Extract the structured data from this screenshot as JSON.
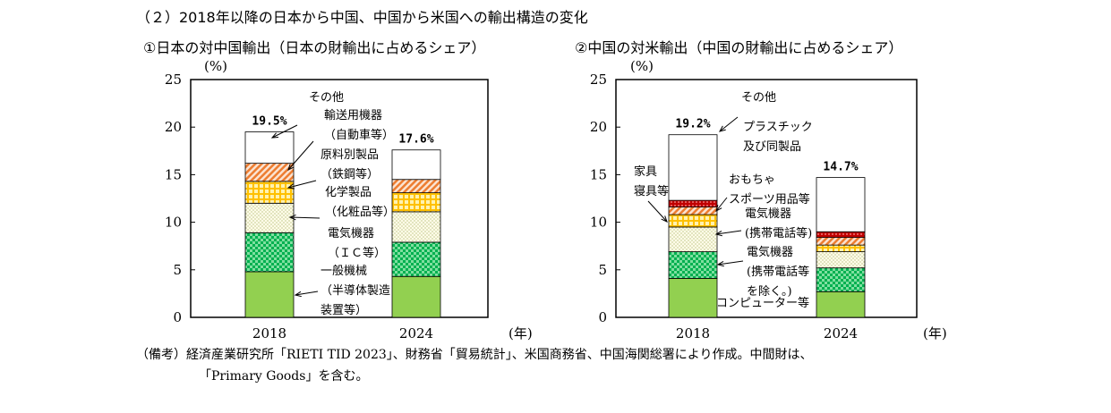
{
  "heading": "（２）2018年以降の日本から中国、中国から米国への輸出構造の変化",
  "note": {
    "line1": "（備考）経済産業研究所「RIETI TID 2023」、財務省「貿易統計」、米国商務省、中国海関総署により作成。中間財は、",
    "line2": "「Primary Goods」を含む。"
  },
  "colors": {
    "general_machinery": "#92d050",
    "electrical_excl": "#00b050",
    "chem_or_elec_phones": "#fffce8",
    "raw_material_or_furniture": "#ffc000",
    "transport_or_toys": "#f4b183",
    "plastics": "#c00000",
    "other": "#ffffff"
  },
  "chart_data": [
    {
      "type": "bar",
      "stacked": true,
      "title": "①日本の対中国輸出（日本の財輸出に占めるシェア）",
      "ylabel": "(%)",
      "xlabel": "(年)",
      "ylim": [
        0,
        25
      ],
      "yticks": [
        0,
        5,
        10,
        15,
        20,
        25
      ],
      "categories": [
        "2018",
        "2024"
      ],
      "totals_labels": [
        "19.5%",
        "17.6%"
      ],
      "totals": [
        19.5,
        17.6
      ],
      "series": [
        {
          "name": "一般機械（半導体製造装置等）",
          "values": [
            4.8,
            4.3
          ],
          "color_key": "general_machinery",
          "pattern": "solid"
        },
        {
          "name": "電気機器（ＩＣ等）",
          "values": [
            4.1,
            3.6
          ],
          "color_key": "electrical_excl",
          "pattern": "check"
        },
        {
          "name": "化学製品（化粧品等）",
          "values": [
            3.1,
            3.2
          ],
          "color_key": "chem_or_elec_phones",
          "pattern": "dots"
        },
        {
          "name": "原料別製品（鉄鋼等）",
          "values": [
            2.3,
            2.0
          ],
          "color_key": "raw_material_or_furniture",
          "pattern": "grid"
        },
        {
          "name": "輸送用機器（自動車等）",
          "values": [
            1.9,
            1.4
          ],
          "color_key": "transport_or_toys",
          "pattern": "diag"
        },
        {
          "name": "その他",
          "values": [
            3.3,
            3.1
          ],
          "color_key": "other",
          "pattern": "solid"
        }
      ],
      "annotations": [
        {
          "lines": [
            "その他"
          ],
          "series": 5
        },
        {
          "lines": [
            "輸送用機器",
            "（自動車等）"
          ],
          "series": 4
        },
        {
          "lines": [
            "原料別製品",
            "（鉄鋼等）"
          ],
          "series": 3
        },
        {
          "lines": [
            "化学製品",
            "（化粧品等）"
          ],
          "series": 2
        },
        {
          "lines": [
            "電気機器",
            "（ＩＣ等）"
          ],
          "series": 1
        },
        {
          "lines": [
            "一般機械",
            "（半導体製造",
            "装置等）"
          ],
          "series": 0
        }
      ]
    },
    {
      "type": "bar",
      "stacked": true,
      "title": "②中国の対米輸出（中国の財輸出に占めるシェア）",
      "ylabel": "(%)",
      "xlabel": "(年)",
      "ylim": [
        0,
        25
      ],
      "yticks": [
        0,
        5,
        10,
        15,
        20,
        25
      ],
      "categories": [
        "2018",
        "2024"
      ],
      "totals_labels": [
        "19.2%",
        "14.7%"
      ],
      "totals": [
        19.2,
        14.7
      ],
      "series": [
        {
          "name": "コンピューター等",
          "values": [
            4.1,
            2.7
          ],
          "color_key": "general_machinery",
          "pattern": "solid"
        },
        {
          "name": "電気機器（携帯電話等を除く。）",
          "values": [
            2.8,
            2.5
          ],
          "color_key": "electrical_excl",
          "pattern": "check"
        },
        {
          "name": "電気機器（携帯電話等）",
          "values": [
            2.6,
            1.7
          ],
          "color_key": "chem_or_elec_phones",
          "pattern": "dots"
        },
        {
          "name": "家具寝具等",
          "values": [
            1.3,
            0.7
          ],
          "color_key": "raw_material_or_furniture",
          "pattern": "grid"
        },
        {
          "name": "おもちゃスポーツ用品等",
          "values": [
            0.8,
            0.8
          ],
          "color_key": "transport_or_toys",
          "pattern": "diag"
        },
        {
          "name": "プラスチック及び同製品",
          "values": [
            0.7,
            0.6
          ],
          "color_key": "plastics",
          "pattern": "dotsred"
        },
        {
          "name": "その他",
          "values": [
            6.9,
            5.7
          ],
          "color_key": "other",
          "pattern": "solid"
        }
      ],
      "annotations": [
        {
          "lines": [
            "その他"
          ],
          "series": 6
        },
        {
          "lines": [
            "プラスチック",
            "及び同製品"
          ],
          "series": 5
        },
        {
          "lines": [
            "家具",
            "寝具等"
          ],
          "series": 3
        },
        {
          "lines": [
            "おもちゃ",
            "スポーツ用品等"
          ],
          "series": 4
        },
        {
          "lines": [
            "電気機器",
            "(携帯電話等)"
          ],
          "series": 2
        },
        {
          "lines": [
            "電気機器",
            "(携帯電話等",
            "を除く。)"
          ],
          "series": 1
        },
        {
          "lines": [
            "コンピューター等"
          ],
          "series": 0
        }
      ]
    }
  ]
}
